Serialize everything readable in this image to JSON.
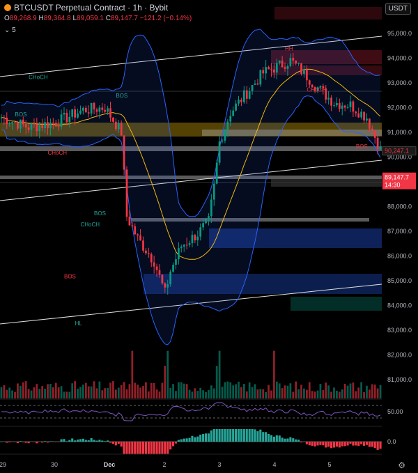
{
  "header": {
    "symbol": "BTCUSDT Perpetual Contract · 1h · Bybit",
    "open_label": "O",
    "open": "89,268.9",
    "high_label": "H",
    "high": "89,364.8",
    "low_label": "L",
    "low": "89,059.1",
    "close_label": "C",
    "close": "89,147.7",
    "change": "−121.2 (−0.14%)",
    "indicator_count": "5",
    "currency_button": "USDT"
  },
  "colors": {
    "up": "#089981",
    "down": "#f23645",
    "band": "#2962ff",
    "ma": "#f0b90b",
    "accent_green": "#26a69a"
  },
  "chart_data": {
    "type": "candlestick",
    "x_tick_labels": [
      "29",
      "30",
      "Dec",
      "2",
      "3",
      "4",
      "5"
    ],
    "y_ticks": [
      "95,000.0",
      "94,000.0",
      "93,000.0",
      "92,000.0",
      "91,000.0",
      "90,000.0",
      "89,000.0",
      "88,000.0",
      "87,000.0",
      "86,000.0",
      "85,000.0",
      "84,000.0",
      "83,000.0",
      "82,000.0",
      "81,000.0"
    ],
    "ylim": [
      80300,
      95500
    ],
    "last_price_label": "90,247.1",
    "current_price_label": "89,147.7",
    "countdown_label": "14:30",
    "annotations": [
      {
        "text": "HH",
        "color": "#f23645",
        "x": 104,
        "price": 94300
      },
      {
        "text": "CHoCH",
        "color": "#26a69a",
        "x": 10,
        "price": 93150
      },
      {
        "text": "BOS",
        "color": "#26a69a",
        "x": 5,
        "price": 91650
      },
      {
        "text": "CHoCH",
        "color": "#f23645",
        "x": 17,
        "price": 90100
      },
      {
        "text": "BOS",
        "color": "#26a69a",
        "x": 42,
        "price": 92400
      },
      {
        "text": "CHoCH",
        "color": "#f23645",
        "x": 112,
        "price": 92650
      },
      {
        "text": "BOS",
        "color": "#f23645",
        "x": 130,
        "price": 90350
      },
      {
        "text": "BOS",
        "color": "#26a69a",
        "x": 34,
        "price": 87650
      },
      {
        "text": "CHoCH",
        "color": "#26a69a",
        "x": 29,
        "price": 87200
      },
      {
        "text": "BOS",
        "color": "#f23645",
        "x": 23,
        "price": 85100
      },
      {
        "text": "HL",
        "color": "#26a69a",
        "x": 27,
        "price": 83200
      }
    ],
    "rsi_level_label": "50.00",
    "osc_level_label": "0.0"
  }
}
